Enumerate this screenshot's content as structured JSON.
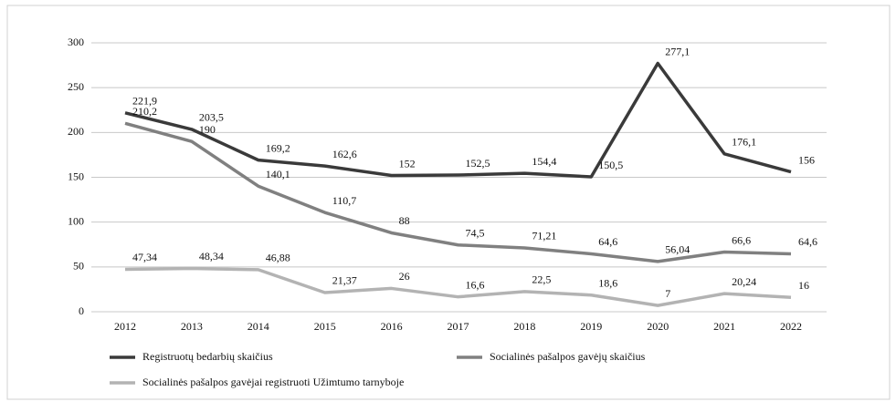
{
  "chart_data": {
    "type": "line",
    "categories": [
      "2012",
      "2013",
      "2014",
      "2015",
      "2016",
      "2017",
      "2018",
      "2019",
      "2020",
      "2021",
      "2022"
    ],
    "series": [
      {
        "name": "Registruotų bedarbių skaičius",
        "color": "#3a3a3a",
        "values": [
          221.9,
          203.5,
          169.2,
          162.6,
          152,
          152.5,
          154.4,
          150.5,
          277.1,
          176.1,
          156
        ],
        "value_labels": [
          "221,9",
          "203,5",
          "169,2",
          "162,6",
          "152",
          "152,5",
          "154,4",
          "150,5",
          "277,1",
          "176,1",
          "156"
        ]
      },
      {
        "name": "Socialinės pašalpos gavėjų skaičius",
        "color": "#808080",
        "values": [
          210.2,
          190,
          140.1,
          110.7,
          88,
          74.5,
          71.21,
          64.6,
          56.04,
          66.6,
          64.6
        ],
        "value_labels": [
          "210,2",
          "190",
          "140,1",
          "110,7",
          "88",
          "74,5",
          "71,21",
          "64,6",
          "56,04",
          "66,6",
          "64,6"
        ]
      },
      {
        "name": "Socialinės pašalpos gavėjai registruoti Užimtumo tarnyboje",
        "color": "#b3b3b3",
        "values": [
          47.34,
          48.34,
          46.88,
          21.37,
          26,
          16.6,
          22.5,
          18.6,
          7,
          20.24,
          16
        ],
        "value_labels": [
          "47,34",
          "48,34",
          "46,88",
          "21,37",
          "26",
          "16,6",
          "22,5",
          "18,6",
          "7",
          "20,24",
          "16"
        ]
      }
    ],
    "ylim": [
      0,
      300
    ],
    "yticks": [
      0,
      50,
      100,
      150,
      200,
      250,
      300
    ],
    "grid": true
  }
}
